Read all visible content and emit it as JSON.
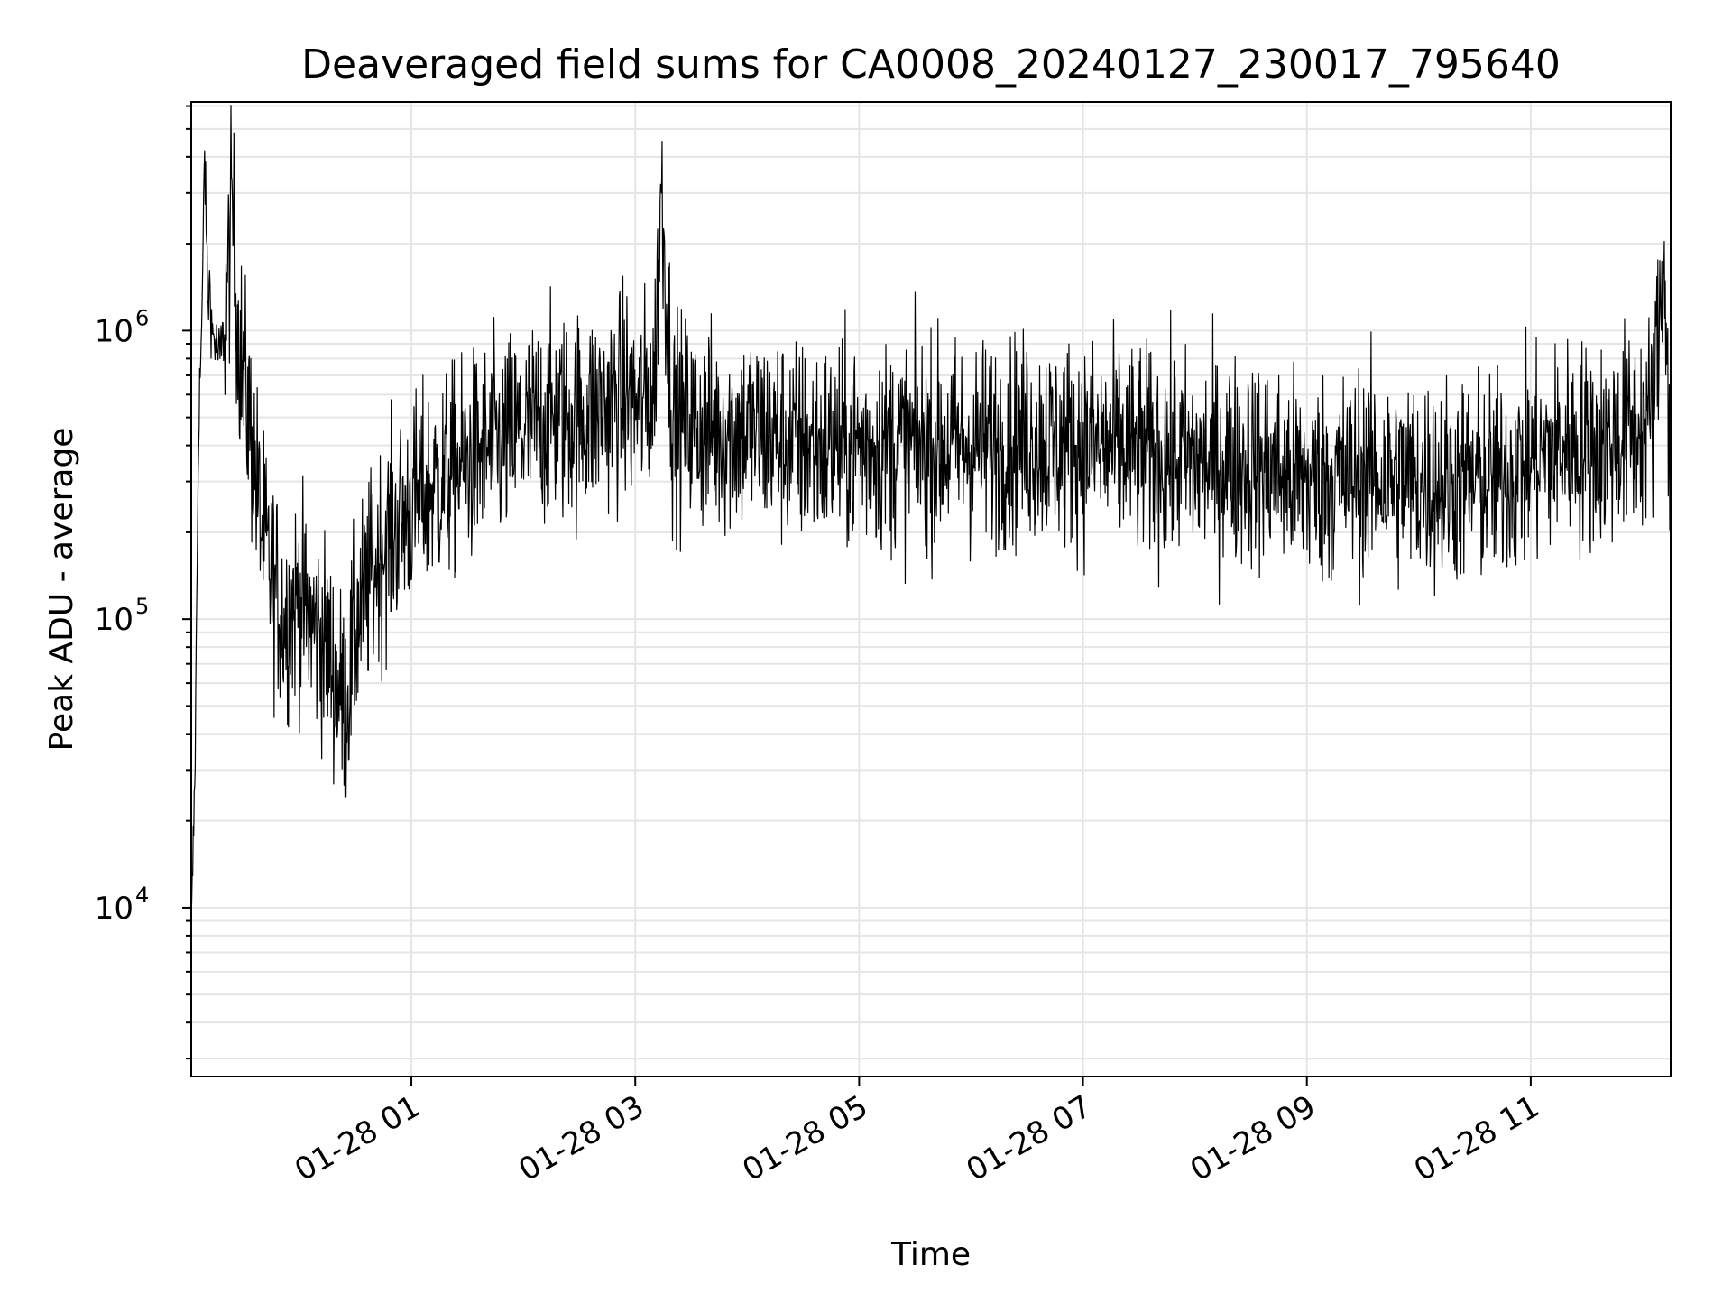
{
  "chart_data": {
    "type": "line",
    "title": "Deaveraged field sums for CA0008_20240127_230017_795640",
    "xlabel": "Time",
    "ylabel": "Peak ADU - average",
    "x_scale": "time",
    "y_scale": "log",
    "xlim": [
      "2024-01-27 23:02",
      "2024-01-28 12:15"
    ],
    "ylim": [
      2600,
      6200000
    ],
    "x_ticks": [
      {
        "value": "2024-01-28 01:00",
        "label": "01-28 01"
      },
      {
        "value": "2024-01-28 03:00",
        "label": "01-28 03"
      },
      {
        "value": "2024-01-28 05:00",
        "label": "01-28 05"
      },
      {
        "value": "2024-01-28 07:00",
        "label": "01-28 07"
      },
      {
        "value": "2024-01-28 09:00",
        "label": "01-28 09"
      },
      {
        "value": "2024-01-28 11:00",
        "label": "01-28 11"
      }
    ],
    "y_ticks": [
      {
        "value": 10000,
        "base": "10",
        "exp": "4"
      },
      {
        "value": 100000,
        "base": "10",
        "exp": "5"
      },
      {
        "value": 1000000,
        "base": "10",
        "exp": "6"
      }
    ],
    "grid": true,
    "line_color": "#000000",
    "grid_color": "#e5e5e5",
    "series": [
      {
        "x": [
          "2024-01-27 23:02",
          "2024-01-27 23:04",
          "2024-01-27 23:06",
          "2024-01-27 23:08",
          "2024-01-27 23:09",
          "2024-01-27 23:11",
          "2024-01-27 23:12",
          "2024-01-27 23:13",
          "2024-01-27 23:15",
          "2024-01-27 23:17",
          "2024-01-27 23:20",
          "2024-01-27 23:24",
          "2024-01-27 23:27",
          "2024-01-27 23:30",
          "2024-01-27 23:33",
          "2024-01-27 23:37",
          "2024-01-27 23:40",
          "2024-01-27 23:44",
          "2024-01-27 23:48",
          "2024-01-27 23:52",
          "2024-01-27 23:56",
          "2024-01-28 00:00",
          "2024-01-28 00:05",
          "2024-01-28 00:10",
          "2024-01-28 00:15",
          "2024-01-28 00:20",
          "2024-01-28 00:25",
          "2024-01-28 00:30",
          "2024-01-28 00:35",
          "2024-01-28 00:40",
          "2024-01-28 00:45",
          "2024-01-28 00:50",
          "2024-01-28 00:55",
          "2024-01-28 01:00",
          "2024-01-28 01:15",
          "2024-01-28 01:30",
          "2024-01-28 01:45",
          "2024-01-28 02:00",
          "2024-01-28 02:15",
          "2024-01-28 02:30",
          "2024-01-28 02:45",
          "2024-01-28 02:55",
          "2024-01-28 03:00",
          "2024-01-28 03:10",
          "2024-01-28 03:14",
          "2024-01-28 03:20",
          "2024-01-28 03:40",
          "2024-01-28 04:00",
          "2024-01-28 04:30",
          "2024-01-28 05:00",
          "2024-01-28 05:30",
          "2024-01-28 06:00",
          "2024-01-28 06:30",
          "2024-01-28 07:00",
          "2024-01-28 07:30",
          "2024-01-28 08:00",
          "2024-01-28 08:30",
          "2024-01-28 09:00",
          "2024-01-28 09:30",
          "2024-01-28 10:00",
          "2024-01-28 10:20",
          "2024-01-28 10:40",
          "2024-01-28 11:00",
          "2024-01-28 11:20",
          "2024-01-28 11:40",
          "2024-01-28 11:55",
          "2024-01-28 12:05",
          "2024-01-28 12:12",
          "2024-01-28 12:15"
        ],
        "y": [
          8000,
          30000,
          500000,
          1200000,
          4500000,
          1200000,
          1500000,
          1000000,
          900000,
          800000,
          1000000,
          2800000,
          1000000,
          700000,
          500000,
          300000,
          200000,
          150000,
          120000,
          100000,
          110000,
          120000,
          100000,
          90000,
          80000,
          60000,
          50000,
          90000,
          120000,
          150000,
          180000,
          200000,
          220000,
          250000,
          300000,
          350000,
          400000,
          450000,
          500000,
          500000,
          550000,
          600000,
          550000,
          600000,
          3200000,
          500000,
          450000,
          450000,
          400000,
          400000,
          400000,
          400000,
          420000,
          400000,
          380000,
          350000,
          350000,
          300000,
          320000,
          300000,
          300000,
          300000,
          350000,
          400000,
          400000,
          450000,
          500000,
          1900000,
          200000
        ]
      }
    ]
  }
}
